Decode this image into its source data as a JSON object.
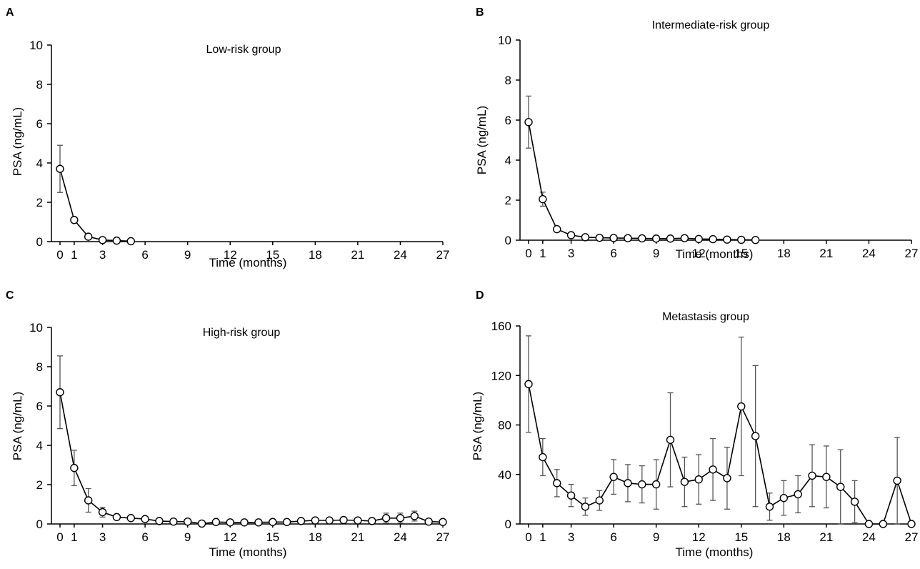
{
  "chart_data": [
    {
      "panel": "A",
      "type": "line",
      "title": "Low-risk group",
      "xlabel": "Time (months)",
      "ylabel": "PSA (ng/mL)",
      "xlim": [
        0,
        27
      ],
      "ylim": [
        0,
        10
      ],
      "xticks": [
        "0",
        "1",
        "3",
        "6",
        "9",
        "12",
        "15",
        "18",
        "21",
        "24",
        "27"
      ],
      "yticks": [
        "0",
        "2",
        "4",
        "6",
        "8",
        "10"
      ],
      "grid": false,
      "series": [
        {
          "x": [
            0,
            1,
            2,
            3,
            4,
            5
          ],
          "y": [
            3.7,
            1.1,
            0.25,
            0.08,
            0.05,
            0.02
          ],
          "err": [
            1.2,
            0.15,
            0.05,
            0.03,
            0.02,
            0.01
          ]
        }
      ]
    },
    {
      "panel": "B",
      "type": "line",
      "title": "Intermediate-risk group",
      "xlabel": "Time (months)",
      "ylabel": "PSA (ng/mL)",
      "xlim": [
        0,
        27
      ],
      "ylim": [
        0,
        10
      ],
      "xticks": [
        "0",
        "1",
        "3",
        "6",
        "9",
        "12",
        "15",
        "18",
        "21",
        "24",
        "27"
      ],
      "yticks": [
        "0",
        "2",
        "4",
        "6",
        "8",
        "10"
      ],
      "grid": false,
      "series": [
        {
          "x": [
            0,
            1,
            2,
            3,
            4,
            5,
            6,
            7,
            8,
            9,
            10,
            11,
            12,
            13,
            14,
            15,
            16
          ],
          "y": [
            5.9,
            2.05,
            0.55,
            0.25,
            0.15,
            0.12,
            0.11,
            0.1,
            0.09,
            0.08,
            0.08,
            0.1,
            0.06,
            0.05,
            0.03,
            0.02,
            0.01
          ],
          "err": [
            1.3,
            0.35,
            0.08,
            0.05,
            0.03,
            0.02,
            0.02,
            0.02,
            0.02,
            0.02,
            0.02,
            0.03,
            0.02,
            0.02,
            0.01,
            0.01,
            0.01
          ]
        }
      ]
    },
    {
      "panel": "C",
      "type": "line",
      "title": "High-risk group",
      "xlabel": "Time (months)",
      "ylabel": "PSA (ng/mL)",
      "xlim": [
        0,
        27
      ],
      "ylim": [
        0,
        10
      ],
      "xticks": [
        "0",
        "1",
        "3",
        "6",
        "9",
        "12",
        "15",
        "18",
        "21",
        "24",
        "27"
      ],
      "yticks": [
        "0",
        "2",
        "4",
        "6",
        "8",
        "10"
      ],
      "grid": false,
      "series": [
        {
          "x": [
            0,
            1,
            2,
            3,
            4,
            5,
            6,
            7,
            8,
            9,
            10,
            11,
            12,
            13,
            14,
            15,
            16,
            17,
            18,
            19,
            20,
            21,
            22,
            23,
            24,
            25,
            26,
            27
          ],
          "y": [
            6.7,
            2.85,
            1.2,
            0.6,
            0.35,
            0.3,
            0.25,
            0.15,
            0.12,
            0.12,
            0.02,
            0.1,
            0.08,
            0.08,
            0.08,
            0.1,
            0.1,
            0.15,
            0.18,
            0.18,
            0.2,
            0.18,
            0.15,
            0.3,
            0.3,
            0.4,
            0.12,
            0.1
          ],
          "err": [
            1.85,
            0.9,
            0.6,
            0.25,
            0.08,
            0.06,
            0.05,
            0.04,
            0.04,
            0.04,
            0.02,
            0.03,
            0.03,
            0.03,
            0.03,
            0.03,
            0.03,
            0.05,
            0.06,
            0.06,
            0.07,
            0.06,
            0.05,
            0.25,
            0.25,
            0.25,
            0.05,
            0.04
          ]
        }
      ]
    },
    {
      "panel": "D",
      "type": "line",
      "title": "Metastasis group",
      "xlabel": "Time (months)",
      "ylabel": "PSA (ng/mL)",
      "xlim": [
        0,
        27
      ],
      "ylim": [
        0,
        160
      ],
      "xticks": [
        "0",
        "1",
        "3",
        "6",
        "9",
        "12",
        "15",
        "18",
        "21",
        "24",
        "27"
      ],
      "yticks": [
        "0",
        "40",
        "80",
        "120",
        "160"
      ],
      "grid": false,
      "series": [
        {
          "x": [
            0,
            1,
            2,
            3,
            4,
            5,
            6,
            7,
            8,
            9,
            10,
            11,
            12,
            13,
            14,
            15,
            16,
            17,
            18,
            19,
            20,
            21,
            22,
            23,
            24,
            25,
            26,
            27
          ],
          "y": [
            113,
            54,
            33,
            23,
            14,
            19,
            38,
            33,
            32,
            32,
            68,
            34,
            36,
            44,
            37,
            95,
            71,
            14,
            21,
            24,
            39,
            38,
            30,
            18,
            0,
            0,
            35,
            0
          ],
          "err": [
            39,
            15,
            11,
            9,
            7,
            8,
            14,
            15,
            15,
            20,
            38,
            20,
            20,
            25,
            25,
            56,
            57,
            11,
            14,
            15,
            25,
            25,
            30,
            17,
            0,
            0,
            35,
            0
          ]
        }
      ]
    }
  ]
}
